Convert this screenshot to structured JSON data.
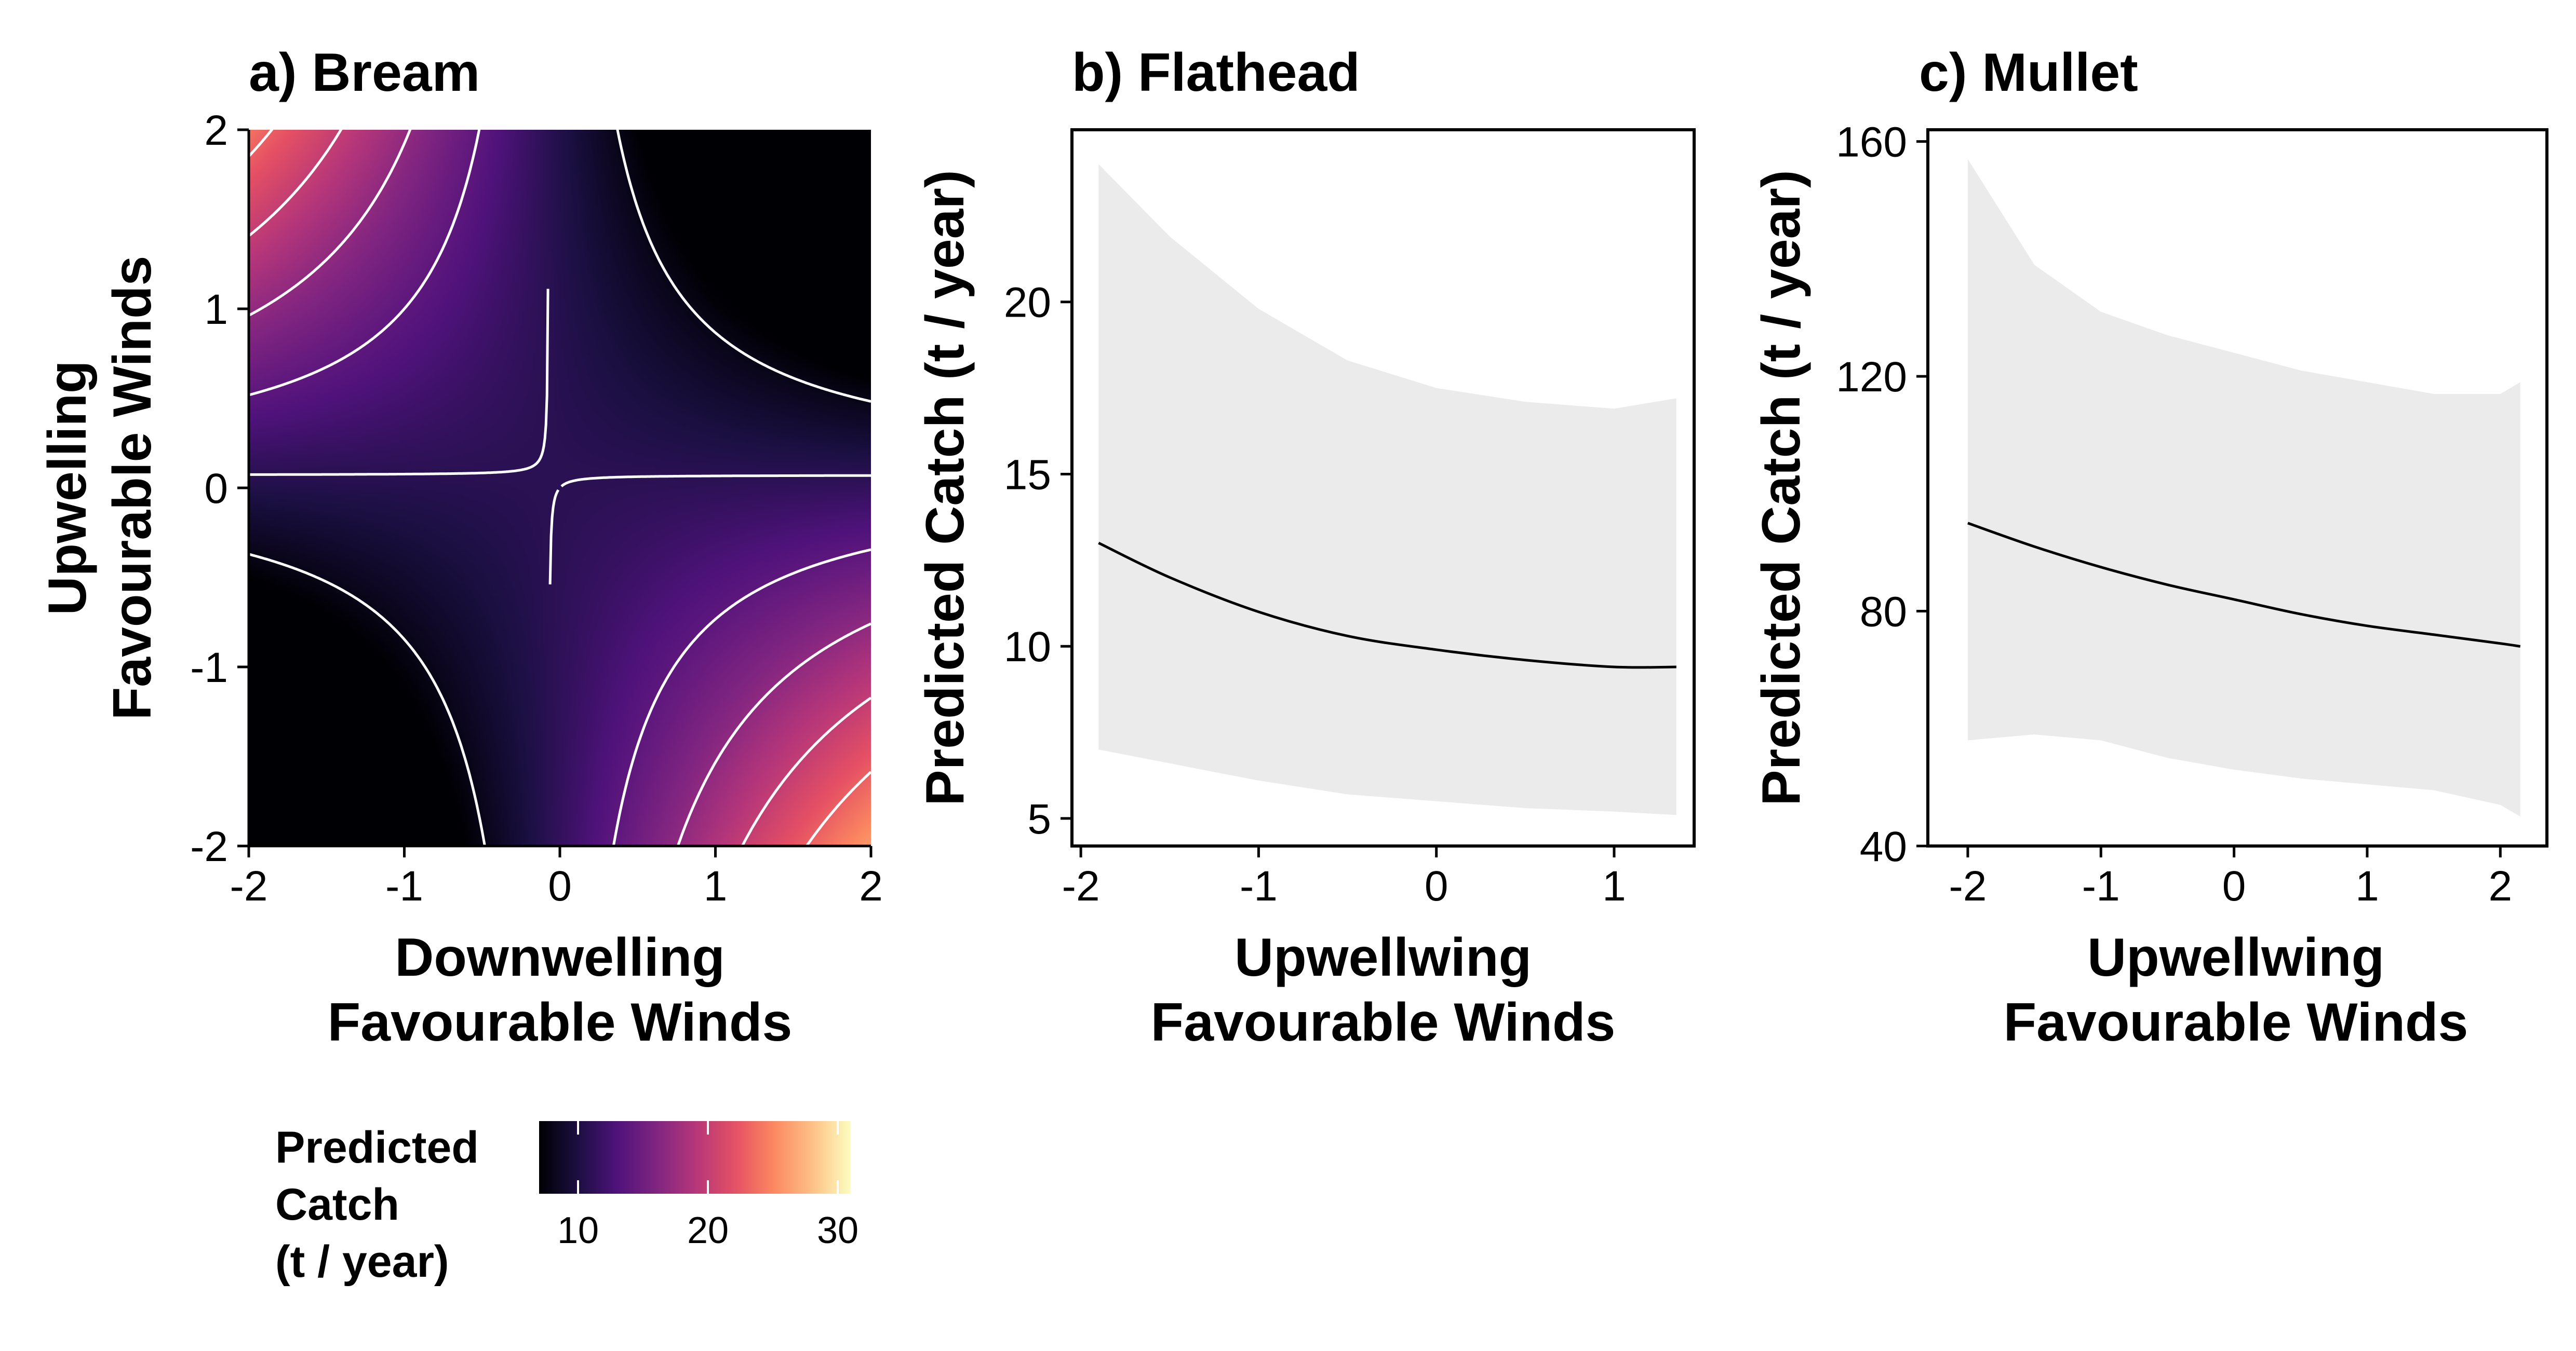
{
  "chart_data": [
    {
      "type": "heatmap",
      "title": "a) Bream",
      "xlabel": [
        "Downwelling",
        "Favourable Winds"
      ],
      "ylabel": [
        "Upwelling",
        "Favourable Winds"
      ],
      "xlim": [
        -2,
        2
      ],
      "ylim": [
        -2,
        2
      ],
      "x_ticks": [
        "-2",
        "-1",
        "0",
        "1",
        "2"
      ],
      "y_ticks": [
        "-2",
        "-1",
        "0",
        "1",
        "2"
      ],
      "colormap": "magma",
      "surface": {
        "intercept": 11,
        "slope_x": 0.25,
        "slope_y": -0.25,
        "interaction_xy": -3.5,
        "min": 7.1,
        "max": 31
      },
      "contour_levels": [
        8,
        11,
        14,
        17,
        20,
        23,
        26,
        29
      ],
      "contour_color": "#ffffff",
      "legend": {
        "title": [
          "Predicted",
          "Catch",
          "(t / year)"
        ],
        "range": [
          7,
          31
        ],
        "ticks": [
          10,
          20,
          30
        ],
        "tick_labels": [
          "10",
          "20",
          "30"
        ],
        "placement": "bottom"
      }
    },
    {
      "type": "line",
      "title": "b) Flathead",
      "xlabel": [
        "Upwellwing",
        "Favourable Winds"
      ],
      "ylabel": "Predicted Catch (t / year)",
      "xlim": [
        -2.05,
        1.45
      ],
      "ylim": [
        4.2,
        25
      ],
      "x_ticks": [
        "-2",
        "-1",
        "0",
        "1"
      ],
      "y_ticks": [
        "5",
        "10",
        "15",
        "20"
      ],
      "x": [
        -1.9,
        -1.5,
        -1.0,
        -0.5,
        0.0,
        0.5,
        1.0,
        1.35
      ],
      "y": [
        13.0,
        12.0,
        11.0,
        10.3,
        9.9,
        9.6,
        9.4,
        9.4
      ],
      "lower": [
        7.0,
        6.6,
        6.1,
        5.7,
        5.5,
        5.3,
        5.2,
        5.1
      ],
      "upper": [
        24.0,
        21.9,
        19.8,
        18.3,
        17.5,
        17.1,
        16.9,
        17.2
      ],
      "line_color": "#000000",
      "band_color": "#ebebeb"
    },
    {
      "type": "line",
      "title": "c) Mullet",
      "xlabel": [
        "Upwellwing",
        "Favourable Winds"
      ],
      "ylabel": "Predicted Catch (t / year)",
      "xlim": [
        -2.3,
        2.35
      ],
      "ylim": [
        40,
        162
      ],
      "x_ticks": [
        "-2",
        "-1",
        "0",
        "1",
        "2"
      ],
      "y_ticks": [
        "40",
        "80",
        "120",
        "160"
      ],
      "x": [
        -2.0,
        -1.5,
        -1.0,
        -0.5,
        0.0,
        0.5,
        1.0,
        1.5,
        2.0,
        2.15
      ],
      "y": [
        95,
        91,
        87.5,
        84.5,
        82,
        79.5,
        77.5,
        76,
        74.5,
        74
      ],
      "lower": [
        58,
        59,
        58,
        55,
        53,
        51.5,
        50.5,
        49.5,
        47,
        45
      ],
      "upper": [
        157,
        139,
        131,
        127,
        124,
        121,
        119,
        117,
        117,
        119
      ],
      "line_color": "#000000",
      "band_color": "#ebebeb"
    }
  ]
}
